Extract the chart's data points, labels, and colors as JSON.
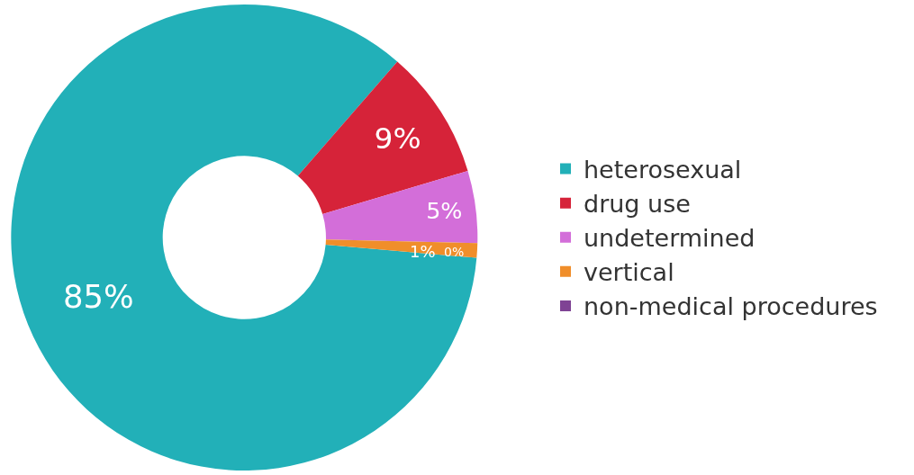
{
  "chart_data": {
    "type": "donut",
    "categories": [
      "heterosexual",
      "drug use",
      "undetermined",
      "vertical",
      "non-medical procedures"
    ],
    "values": [
      85,
      9,
      5,
      1,
      0
    ],
    "value_labels": [
      "85%",
      "9%",
      "5%",
      "1%",
      "0%"
    ],
    "colors": [
      "#22b0b8",
      "#d62339",
      "#d36ed9",
      "#f08e2a",
      "#7f4394"
    ],
    "legend": "right"
  }
}
